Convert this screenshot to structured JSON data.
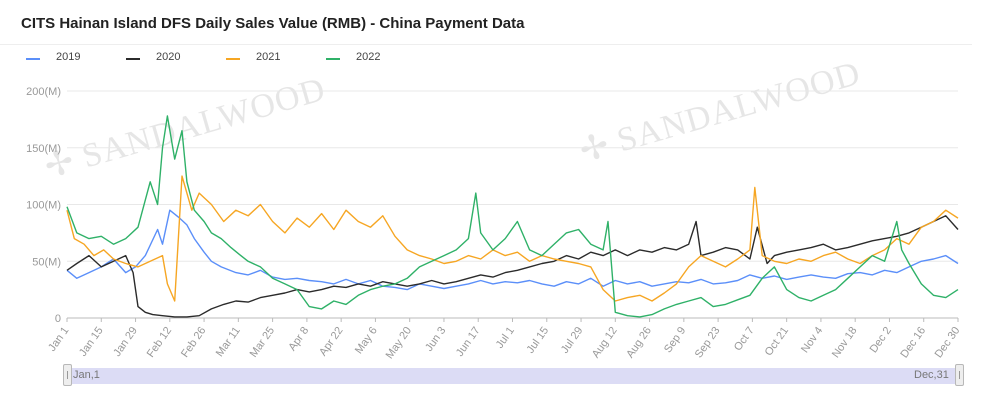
{
  "title": "CITS Hainan Island DFS Daily Sales Value (RMB) - China Payment Data",
  "watermark": "SANDALWOOD",
  "zoom": {
    "start_label": "Jan,1",
    "end_label": "Dec,31"
  },
  "chart_data": {
    "type": "line",
    "title": "CITS Hainan Island DFS Daily Sales Value (RMB) - China Payment Data",
    "xlabel": "",
    "ylabel": "",
    "ylim": [
      0,
      200
    ],
    "xlim": [
      1,
      365
    ],
    "grid": true,
    "legend_position": "top-left",
    "y_ticks": [
      0,
      50,
      100,
      150,
      200
    ],
    "y_tick_labels": [
      "0",
      "50(M)",
      "100(M)",
      "150(M)",
      "200(M)"
    ],
    "x_ticks": [
      {
        "day": 1,
        "label": "Jan 1"
      },
      {
        "day": 15,
        "label": "Jan 15"
      },
      {
        "day": 29,
        "label": "Jan 29"
      },
      {
        "day": 43,
        "label": "Feb 12"
      },
      {
        "day": 57,
        "label": "Feb 26"
      },
      {
        "day": 71,
        "label": "Mar 11"
      },
      {
        "day": 85,
        "label": "Mar 25"
      },
      {
        "day": 99,
        "label": "Apr 8"
      },
      {
        "day": 113,
        "label": "Apr 22"
      },
      {
        "day": 127,
        "label": "May 6"
      },
      {
        "day": 141,
        "label": "May 20"
      },
      {
        "day": 155,
        "label": "Jun 3"
      },
      {
        "day": 169,
        "label": "Jun 17"
      },
      {
        "day": 183,
        "label": "Jul 1"
      },
      {
        "day": 197,
        "label": "Jul 15"
      },
      {
        "day": 211,
        "label": "Jul 29"
      },
      {
        "day": 225,
        "label": "Aug 12"
      },
      {
        "day": 239,
        "label": "Aug 26"
      },
      {
        "day": 253,
        "label": "Sep 9"
      },
      {
        "day": 267,
        "label": "Sep 23"
      },
      {
        "day": 281,
        "label": "Oct 7"
      },
      {
        "day": 295,
        "label": "Oct 21"
      },
      {
        "day": 309,
        "label": "Nov 4"
      },
      {
        "day": 323,
        "label": "Nov 18"
      },
      {
        "day": 337,
        "label": "Dec 2"
      },
      {
        "day": 351,
        "label": "Dec 16"
      },
      {
        "day": 365,
        "label": "Dec 30"
      }
    ],
    "series": [
      {
        "name": "2019",
        "color": "#5b8ff9",
        "x": [
          1,
          5,
          10,
          15,
          20,
          25,
          29,
          33,
          38,
          40,
          43,
          47,
          50,
          53,
          57,
          60,
          64,
          70,
          75,
          80,
          85,
          90,
          95,
          100,
          105,
          110,
          115,
          120,
          125,
          130,
          135,
          140,
          145,
          150,
          155,
          160,
          165,
          170,
          175,
          180,
          185,
          190,
          195,
          200,
          205,
          210,
          215,
          220,
          225,
          230,
          235,
          240,
          245,
          250,
          255,
          260,
          265,
          270,
          275,
          280,
          285,
          290,
          295,
          300,
          305,
          310,
          315,
          320,
          325,
          330,
          335,
          340,
          345,
          350,
          355,
          360,
          365
        ],
        "y": [
          42,
          35,
          40,
          45,
          52,
          40,
          45,
          55,
          78,
          65,
          95,
          88,
          82,
          70,
          58,
          50,
          45,
          40,
          38,
          42,
          36,
          34,
          35,
          33,
          32,
          30,
          34,
          30,
          33,
          28,
          27,
          25,
          30,
          28,
          26,
          28,
          30,
          33,
          30,
          32,
          31,
          33,
          30,
          28,
          32,
          30,
          35,
          28,
          33,
          30,
          32,
          28,
          30,
          32,
          31,
          34,
          30,
          31,
          33,
          38,
          35,
          37,
          34,
          36,
          38,
          36,
          35,
          39,
          40,
          38,
          42,
          40,
          45,
          50,
          52,
          55,
          48
        ]
      },
      {
        "name": "2020",
        "color": "#2b2b2b",
        "x": [
          1,
          5,
          10,
          15,
          20,
          25,
          28,
          30,
          33,
          36,
          40,
          45,
          50,
          55,
          60,
          65,
          70,
          75,
          80,
          85,
          90,
          95,
          100,
          105,
          110,
          115,
          120,
          125,
          130,
          135,
          140,
          145,
          150,
          155,
          160,
          165,
          170,
          175,
          180,
          185,
          190,
          195,
          200,
          205,
          210,
          215,
          220,
          225,
          230,
          235,
          240,
          245,
          250,
          255,
          258,
          260,
          265,
          270,
          275,
          280,
          283,
          287,
          290,
          295,
          300,
          305,
          310,
          315,
          320,
          325,
          330,
          335,
          340,
          345,
          350,
          355,
          360,
          365
        ],
        "y": [
          42,
          48,
          55,
          45,
          50,
          55,
          40,
          10,
          5,
          3,
          2,
          1,
          1,
          2,
          8,
          12,
          15,
          14,
          18,
          20,
          22,
          25,
          23,
          25,
          28,
          27,
          30,
          28,
          32,
          30,
          28,
          30,
          33,
          30,
          32,
          35,
          38,
          36,
          40,
          42,
          45,
          48,
          50,
          55,
          52,
          58,
          55,
          60,
          55,
          60,
          58,
          62,
          60,
          65,
          85,
          55,
          58,
          62,
          60,
          52,
          80,
          48,
          55,
          58,
          60,
          62,
          65,
          60,
          62,
          65,
          68,
          70,
          72,
          75,
          80,
          85,
          90,
          78
        ]
      },
      {
        "name": "2021",
        "color": "#f6a623",
        "x": [
          1,
          4,
          8,
          12,
          16,
          20,
          25,
          30,
          35,
          40,
          42,
          45,
          48,
          52,
          55,
          60,
          65,
          70,
          75,
          80,
          85,
          90,
          95,
          100,
          105,
          110,
          115,
          120,
          125,
          130,
          135,
          140,
          145,
          150,
          155,
          160,
          165,
          170,
          175,
          180,
          185,
          190,
          195,
          200,
          205,
          210,
          215,
          220,
          225,
          230,
          235,
          240,
          245,
          250,
          255,
          260,
          265,
          270,
          275,
          280,
          282,
          285,
          290,
          295,
          300,
          305,
          310,
          315,
          320,
          325,
          330,
          335,
          340,
          345,
          350,
          355,
          360,
          365
        ],
        "y": [
          95,
          70,
          65,
          55,
          60,
          52,
          48,
          45,
          50,
          55,
          30,
          15,
          125,
          95,
          110,
          100,
          85,
          95,
          90,
          100,
          85,
          75,
          88,
          80,
          92,
          78,
          95,
          85,
          80,
          90,
          72,
          60,
          55,
          52,
          48,
          50,
          55,
          52,
          60,
          55,
          58,
          50,
          55,
          52,
          50,
          48,
          45,
          25,
          15,
          18,
          20,
          15,
          22,
          30,
          45,
          55,
          50,
          45,
          52,
          60,
          115,
          55,
          50,
          48,
          52,
          50,
          55,
          58,
          52,
          48,
          55,
          60,
          70,
          65,
          80,
          85,
          95,
          88
        ]
      },
      {
        "name": "2022",
        "color": "#2fb168",
        "x": [
          1,
          5,
          10,
          15,
          20,
          25,
          30,
          35,
          38,
          40,
          42,
          45,
          48,
          50,
          53,
          57,
          60,
          64,
          68,
          72,
          75,
          80,
          85,
          90,
          95,
          100,
          105,
          110,
          115,
          120,
          125,
          130,
          135,
          140,
          145,
          150,
          155,
          160,
          165,
          168,
          170,
          175,
          180,
          185,
          190,
          195,
          200,
          205,
          210,
          215,
          220,
          222,
          225,
          230,
          235,
          240,
          245,
          250,
          255,
          260,
          265,
          270,
          275,
          280,
          285,
          290,
          295,
          300,
          305,
          310,
          315,
          320,
          325,
          330,
          335,
          340,
          342,
          345,
          350,
          355,
          360,
          365
        ],
        "y": [
          98,
          75,
          70,
          72,
          65,
          70,
          80,
          120,
          100,
          150,
          178,
          140,
          165,
          120,
          95,
          85,
          75,
          70,
          62,
          55,
          50,
          45,
          35,
          30,
          25,
          10,
          8,
          15,
          12,
          20,
          25,
          28,
          30,
          35,
          45,
          50,
          55,
          60,
          70,
          110,
          75,
          60,
          70,
          85,
          60,
          55,
          65,
          75,
          78,
          65,
          60,
          85,
          5,
          2,
          1,
          3,
          8,
          12,
          15,
          18,
          10,
          12,
          16,
          20,
          35,
          45,
          25,
          18,
          15,
          20,
          25,
          35,
          45,
          55,
          50,
          85,
          60,
          48,
          30,
          20,
          18,
          25
        ]
      }
    ]
  }
}
